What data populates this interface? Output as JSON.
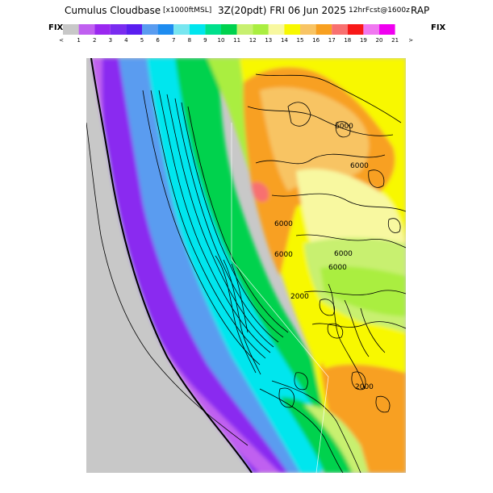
{
  "header": {
    "title": "Cumulus Cloudbase",
    "units": "[x1000ftMSL]",
    "valid_time": "3Z(20pdt) FRI 06 Jun 2025",
    "forecast": "12hrFcst@1600z",
    "model": "RAP"
  },
  "legend": {
    "left_label": "FIX",
    "right_label": "FIX",
    "ticks": [
      "<",
      "1",
      "2",
      "3",
      "4",
      "5",
      "6",
      "7",
      "8",
      "9",
      "10",
      "11",
      "12",
      "13",
      "14",
      "15",
      "16",
      "17",
      "18",
      "19",
      "20",
      "21",
      ">"
    ],
    "colors": [
      "#c8c8c8",
      "#c060f0",
      "#9a28f0",
      "#7a2cf0",
      "#5a1ef0",
      "#5a9cf0",
      "#1e8cf0",
      "#78e6f0",
      "#00e6ee",
      "#00e08c",
      "#00d24e",
      "#c8f070",
      "#aaee40",
      "#f8f8a0",
      "#f8f800",
      "#f8c464",
      "#f8a020",
      "#f87070",
      "#f81818",
      "#f078f0",
      "#f000f0"
    ]
  },
  "map": {
    "contour_labels": [
      "6000",
      "6000",
      "6000",
      "6000",
      "6000",
      "6000",
      "2000",
      "2000"
    ]
  }
}
